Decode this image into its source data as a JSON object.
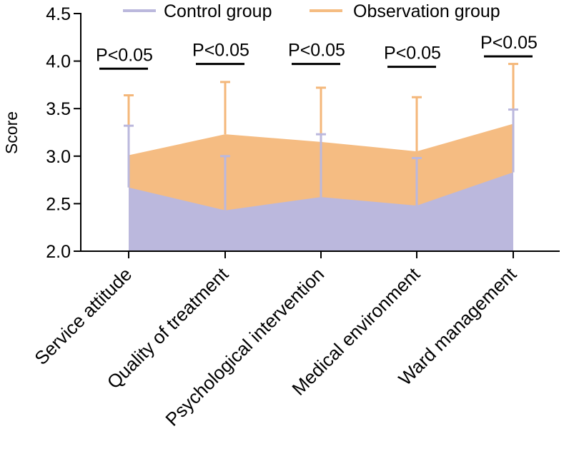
{
  "chart_data": {
    "type": "area",
    "title": "",
    "xlabel": "",
    "ylabel": "Score",
    "ylim": [
      2.0,
      4.5
    ],
    "yticks": [
      2.0,
      2.5,
      3.0,
      3.5,
      4.0,
      4.5
    ],
    "ytick_labels": [
      "2.0",
      "2.5",
      "3.0",
      "3.5",
      "4.0",
      "4.5"
    ],
    "categories": [
      "Service attitude",
      "Quality of treatment",
      "Psychological intervention",
      "Medical environment",
      "Ward management"
    ],
    "series": [
      {
        "name": "Control group",
        "color": "#bbb8dd",
        "errorbar_color": "#bbb8dd",
        "values": [
          2.67,
          2.43,
          2.57,
          2.48,
          2.83
        ],
        "error_upper": [
          3.32,
          3.0,
          3.23,
          2.98,
          3.49
        ]
      },
      {
        "name": "Observation group",
        "color": "#f5bc82",
        "errorbar_color": "#f4b77a",
        "values": [
          3.01,
          3.23,
          3.15,
          3.05,
          3.34
        ],
        "error_upper": [
          3.64,
          3.78,
          3.72,
          3.62,
          3.97
        ]
      }
    ],
    "annotations": [
      {
        "text": "P<0.05",
        "category_index": 0,
        "y": 3.92
      },
      {
        "text": "P<0.05",
        "category_index": 1,
        "y": 3.97
      },
      {
        "text": "P<0.05",
        "category_index": 2,
        "y": 3.97
      },
      {
        "text": "P<0.05",
        "category_index": 3,
        "y": 3.94
      },
      {
        "text": "P<0.05",
        "category_index": 4,
        "y": 4.05
      }
    ],
    "legend_position": "top"
  }
}
